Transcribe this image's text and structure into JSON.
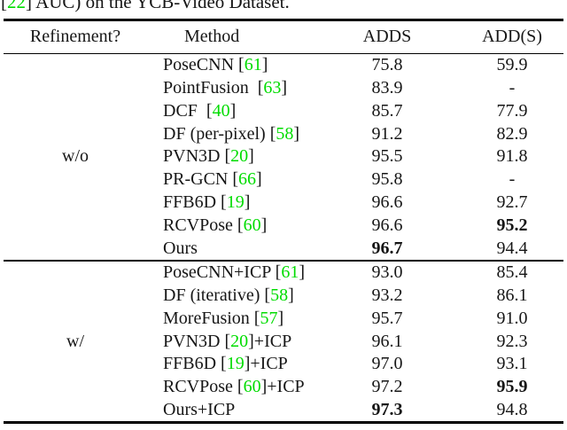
{
  "punct": {
    "open": "[",
    "close": "]"
  },
  "colors": {
    "citation_green": "#00DC00",
    "rule_black": "#000000"
  },
  "caption": {
    "cite": "22",
    "rest": " AUC) on the YCB-Video Dataset."
  },
  "header": {
    "refinement": "Refinement?",
    "method": "Method",
    "adds": "ADDS",
    "add_s": "ADD(S)"
  },
  "sections": [
    {
      "refinement_label": "w/o",
      "rows": [
        {
          "pre": "PoseCNN ",
          "cite": "61",
          "post": "",
          "adds": "75.8",
          "add_s": "59.9",
          "bold_adds": false,
          "bold_add_s": false
        },
        {
          "pre": "PointFusion  ",
          "cite": "63",
          "post": "",
          "adds": "83.9",
          "add_s": "-",
          "bold_adds": false,
          "bold_add_s": false
        },
        {
          "pre": "DCF  ",
          "cite": "40",
          "post": "",
          "adds": "85.7",
          "add_s": "77.9",
          "bold_adds": false,
          "bold_add_s": false
        },
        {
          "pre": "DF (per-pixel) ",
          "cite": "58",
          "post": "",
          "adds": "91.2",
          "add_s": "82.9",
          "bold_adds": false,
          "bold_add_s": false
        },
        {
          "pre": "PVN3D ",
          "cite": "20",
          "post": "",
          "adds": "95.5",
          "add_s": "91.8",
          "bold_adds": false,
          "bold_add_s": false
        },
        {
          "pre": "PR-GCN ",
          "cite": "66",
          "post": "",
          "adds": "95.8",
          "add_s": "-",
          "bold_adds": false,
          "bold_add_s": false
        },
        {
          "pre": "FFB6D ",
          "cite": "19",
          "post": "",
          "adds": "96.6",
          "add_s": "92.7",
          "bold_adds": false,
          "bold_add_s": false
        },
        {
          "pre": "RCVPose ",
          "cite": "60",
          "post": "",
          "adds": "96.6",
          "add_s": "95.2",
          "bold_adds": false,
          "bold_add_s": true
        },
        {
          "pre": "Ours",
          "cite": null,
          "post": "",
          "adds": "96.7",
          "add_s": "94.4",
          "bold_adds": true,
          "bold_add_s": false
        }
      ]
    },
    {
      "refinement_label": "w/",
      "rows": [
        {
          "pre": "PoseCNN+ICP ",
          "cite": "61",
          "post": "",
          "adds": "93.0",
          "add_s": "85.4",
          "bold_adds": false,
          "bold_add_s": false
        },
        {
          "pre": "DF (iterative) ",
          "cite": "58",
          "post": "",
          "adds": "93.2",
          "add_s": "86.1",
          "bold_adds": false,
          "bold_add_s": false
        },
        {
          "pre": "MoreFusion ",
          "cite": "57",
          "post": "",
          "adds": "95.7",
          "add_s": "91.0",
          "bold_adds": false,
          "bold_add_s": false
        },
        {
          "pre": "PVN3D ",
          "cite": "20",
          "post": "+ICP",
          "adds": "96.1",
          "add_s": "92.3",
          "bold_adds": false,
          "bold_add_s": false
        },
        {
          "pre": "FFB6D ",
          "cite": "19",
          "post": "+ICP",
          "adds": "97.0",
          "add_s": "93.1",
          "bold_adds": false,
          "bold_add_s": false
        },
        {
          "pre": "RCVPose ",
          "cite": "60",
          "post": "+ICP",
          "adds": "97.2",
          "add_s": "95.9",
          "bold_adds": false,
          "bold_add_s": true
        },
        {
          "pre": "Ours+ICP",
          "cite": null,
          "post": "",
          "adds": "97.3",
          "add_s": "94.8",
          "bold_adds": true,
          "bold_add_s": false
        }
      ]
    }
  ]
}
